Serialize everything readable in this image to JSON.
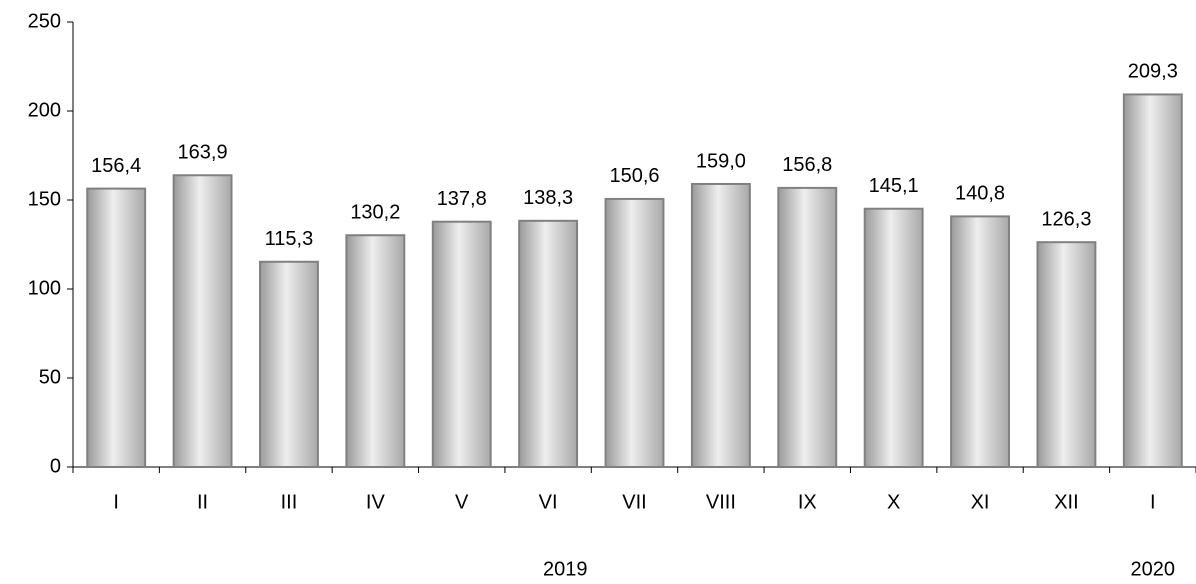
{
  "chart_data": {
    "type": "bar",
    "categories": [
      "I",
      "II",
      "III",
      "IV",
      "V",
      "VI",
      "VII",
      "VIII",
      "IX",
      "X",
      "XI",
      "XII",
      "I"
    ],
    "values": [
      156.4,
      163.9,
      115.3,
      130.2,
      137.8,
      138.3,
      150.6,
      159.0,
      156.8,
      145.1,
      140.8,
      126.3,
      209.3
    ],
    "value_labels": [
      "156,4",
      "163,9",
      "115,3",
      "130,2",
      "137,8",
      "138,3",
      "150,6",
      "159,0",
      "156,8",
      "145,1",
      "140,8",
      "126,3",
      "209,3"
    ],
    "group_labels": [
      "2019",
      "2020"
    ],
    "color": "#c8c8c8",
    "ylim": [
      0,
      250
    ],
    "yticks": [
      0,
      50,
      100,
      150,
      200,
      250
    ],
    "grid": false
  }
}
